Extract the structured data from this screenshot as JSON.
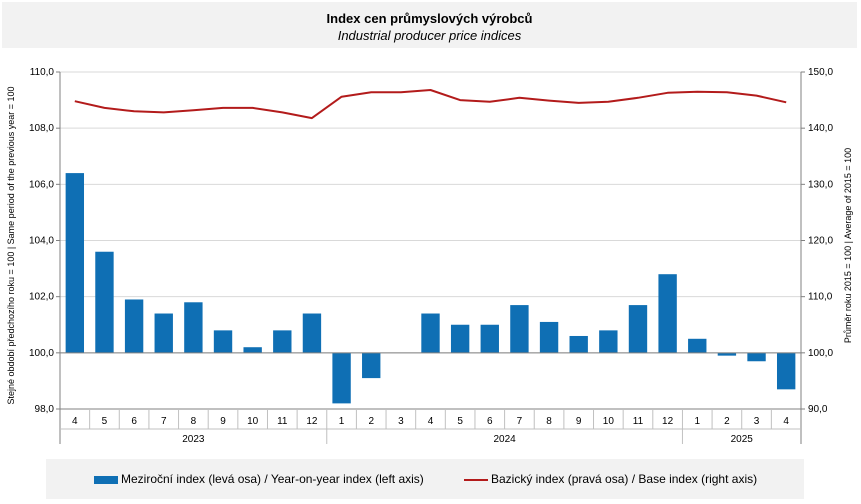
{
  "title": "Index cen průmyslových  výrobců",
  "subtitle": "Industrial producer price indices",
  "colors": {
    "bars": "#0f6fb4",
    "line": "#b31b1b",
    "grid": "#d9d9d9",
    "panel": "#f2f2f2"
  },
  "chart_data": {
    "type": "bar",
    "categories": [
      "4",
      "5",
      "6",
      "7",
      "8",
      "9",
      "10",
      "11",
      "12",
      "1",
      "2",
      "3",
      "4",
      "5",
      "6",
      "7",
      "8",
      "9",
      "10",
      "11",
      "12",
      "1",
      "2",
      "3",
      "4"
    ],
    "years": [
      {
        "label": "2023",
        "start": 0,
        "end": 8
      },
      {
        "label": "2024",
        "start": 9,
        "end": 20
      },
      {
        "label": "2025",
        "start": 21,
        "end": 24
      }
    ],
    "y_left_label": "Stejné období předchozího roku = 100 | Same period of the previous year = 100",
    "y_right_label": "Průměr roku 2015 = 100 | Average of 2015 = 100",
    "y_left_lim": [
      98,
      110
    ],
    "y_left_ticks": [
      "98,0",
      "100,0",
      "102,0",
      "104,0",
      "106,0",
      "108,0",
      "110,0"
    ],
    "y_right_lim": [
      90,
      150
    ],
    "y_right_ticks": [
      "90,0",
      "100,0",
      "110,0",
      "120,0",
      "130,0",
      "140,0",
      "150,0"
    ],
    "baseline_left": 100,
    "series": [
      {
        "name": "Meziroční index (levá osa) / Year-on-year index (left axis)",
        "type": "bar",
        "axis": "left",
        "values": [
          106.4,
          103.6,
          101.9,
          101.4,
          101.8,
          100.8,
          100.2,
          100.8,
          101.4,
          98.2,
          99.1,
          100.0,
          101.4,
          101.0,
          101.0,
          101.7,
          101.1,
          100.6,
          100.8,
          101.7,
          102.8,
          100.5,
          99.9,
          99.7,
          98.7
        ]
      },
      {
        "name": "Bazický index (pravá osa) / Base index (right axis)",
        "type": "line",
        "axis": "right",
        "values": [
          144.8,
          143.6,
          143.0,
          142.8,
          143.2,
          143.6,
          143.6,
          142.8,
          141.8,
          145.6,
          146.4,
          146.4,
          146.8,
          145.0,
          144.7,
          145.4,
          144.9,
          144.5,
          144.7,
          145.4,
          146.3,
          146.5,
          146.4,
          145.8,
          144.6
        ]
      }
    ],
    "grid": true,
    "legend_position": "bottom"
  }
}
